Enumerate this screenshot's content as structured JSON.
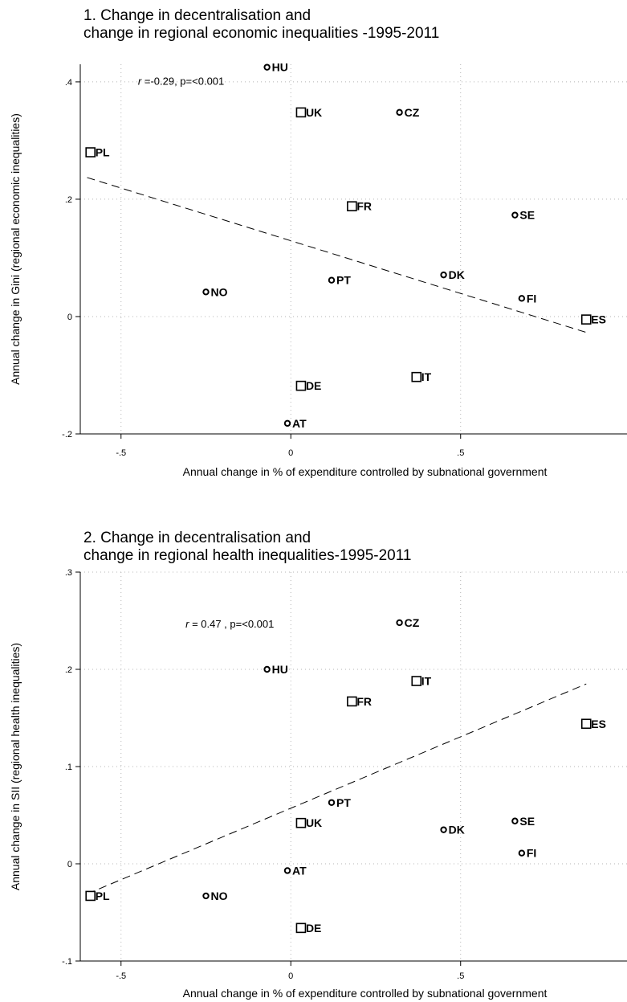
{
  "chart_data": [
    {
      "type": "scatter",
      "title": [
        "1. Change in decentralisation and",
        "change in regional economic inequalities -1995-2011"
      ],
      "xlabel": "Annual change in % of expenditure controlled by subnational government",
      "ylabel": "Annual change in Gini (regional economic inequalities)",
      "xlim": [
        -0.62,
        0.99
      ],
      "ylim": [
        -0.2,
        0.43
      ],
      "xticks": [
        {
          "v": -0.5,
          "label": "-.5"
        },
        {
          "v": 0,
          "label": "0"
        },
        {
          "v": 0.5,
          "label": ".5"
        }
      ],
      "yticks": [
        {
          "v": -0.2,
          "label": "-.2"
        },
        {
          "v": 0,
          "label": "0"
        },
        {
          "v": 0.2,
          "label": ".2"
        },
        {
          "v": 0.4,
          "label": ".4"
        }
      ],
      "grid": true,
      "annotation": {
        "r_symbol": "r",
        "text": " =-0.29, p=<0.001",
        "x": -0.45,
        "y": 0.395
      },
      "fit_line": {
        "x": [
          -0.6,
          0.87
        ],
        "y": [
          0.237,
          -0.027
        ]
      },
      "points": [
        {
          "label": "HU",
          "x": -0.07,
          "y": 0.425,
          "marker": "circle"
        },
        {
          "label": "UK",
          "x": 0.03,
          "y": 0.348,
          "marker": "square"
        },
        {
          "label": "CZ",
          "x": 0.32,
          "y": 0.348,
          "marker": "circle"
        },
        {
          "label": "PL",
          "x": -0.59,
          "y": 0.28,
          "marker": "square"
        },
        {
          "label": "FR",
          "x": 0.18,
          "y": 0.188,
          "marker": "square"
        },
        {
          "label": "SE",
          "x": 0.66,
          "y": 0.173,
          "marker": "circle"
        },
        {
          "label": "DK",
          "x": 0.45,
          "y": 0.071,
          "marker": "circle"
        },
        {
          "label": "PT",
          "x": 0.12,
          "y": 0.062,
          "marker": "circle"
        },
        {
          "label": "NO",
          "x": -0.25,
          "y": 0.042,
          "marker": "circle"
        },
        {
          "label": "FI",
          "x": 0.68,
          "y": 0.031,
          "marker": "circle"
        },
        {
          "label": "ES",
          "x": 0.87,
          "y": -0.005,
          "marker": "square"
        },
        {
          "label": "IT",
          "x": 0.37,
          "y": -0.103,
          "marker": "square"
        },
        {
          "label": "DE",
          "x": 0.03,
          "y": -0.118,
          "marker": "square"
        },
        {
          "label": "AT",
          "x": -0.01,
          "y": -0.182,
          "marker": "circle"
        }
      ]
    },
    {
      "type": "scatter",
      "title": [
        "2. Change in decentralisation and",
        "change in regional health inequalities-1995-2011"
      ],
      "xlabel": "Annual change in % of expenditure controlled by subnational government",
      "ylabel": "Annual change in SII (regional health inequalities)",
      "xlim": [
        -0.62,
        0.99
      ],
      "ylim": [
        -0.1,
        0.3
      ],
      "xticks": [
        {
          "v": -0.5,
          "label": "-.5"
        },
        {
          "v": 0,
          "label": "0"
        },
        {
          "v": 0.5,
          "label": ".5"
        }
      ],
      "yticks": [
        {
          "v": -0.1,
          "label": "-.1"
        },
        {
          "v": 0,
          "label": "0"
        },
        {
          "v": 0.1,
          "label": ".1"
        },
        {
          "v": 0.2,
          "label": ".2"
        },
        {
          "v": 0.3,
          "label": ".3"
        }
      ],
      "grid": true,
      "annotation": {
        "r_symbol": "r",
        "text": " = 0.47 , p=<0.001",
        "x": -0.31,
        "y": 0.243
      },
      "fit_line": {
        "x": [
          -0.6,
          0.87
        ],
        "y": [
          -0.031,
          0.185
        ]
      },
      "points": [
        {
          "label": "CZ",
          "x": 0.32,
          "y": 0.248,
          "marker": "circle"
        },
        {
          "label": "HU",
          "x": -0.07,
          "y": 0.2,
          "marker": "circle"
        },
        {
          "label": "IT",
          "x": 0.37,
          "y": 0.188,
          "marker": "square"
        },
        {
          "label": "FR",
          "x": 0.18,
          "y": 0.167,
          "marker": "square"
        },
        {
          "label": "ES",
          "x": 0.87,
          "y": 0.144,
          "marker": "square"
        },
        {
          "label": "PT",
          "x": 0.12,
          "y": 0.063,
          "marker": "circle"
        },
        {
          "label": "UK",
          "x": 0.03,
          "y": 0.042,
          "marker": "square"
        },
        {
          "label": "SE",
          "x": 0.66,
          "y": 0.044,
          "marker": "circle"
        },
        {
          "label": "DK",
          "x": 0.45,
          "y": 0.035,
          "marker": "circle"
        },
        {
          "label": "FI",
          "x": 0.68,
          "y": 0.011,
          "marker": "circle"
        },
        {
          "label": "AT",
          "x": -0.01,
          "y": -0.007,
          "marker": "circle"
        },
        {
          "label": "PL",
          "x": -0.59,
          "y": -0.033,
          "marker": "square"
        },
        {
          "label": "NO",
          "x": -0.25,
          "y": -0.033,
          "marker": "circle"
        },
        {
          "label": "DE",
          "x": 0.03,
          "y": -0.066,
          "marker": "square"
        }
      ]
    }
  ]
}
